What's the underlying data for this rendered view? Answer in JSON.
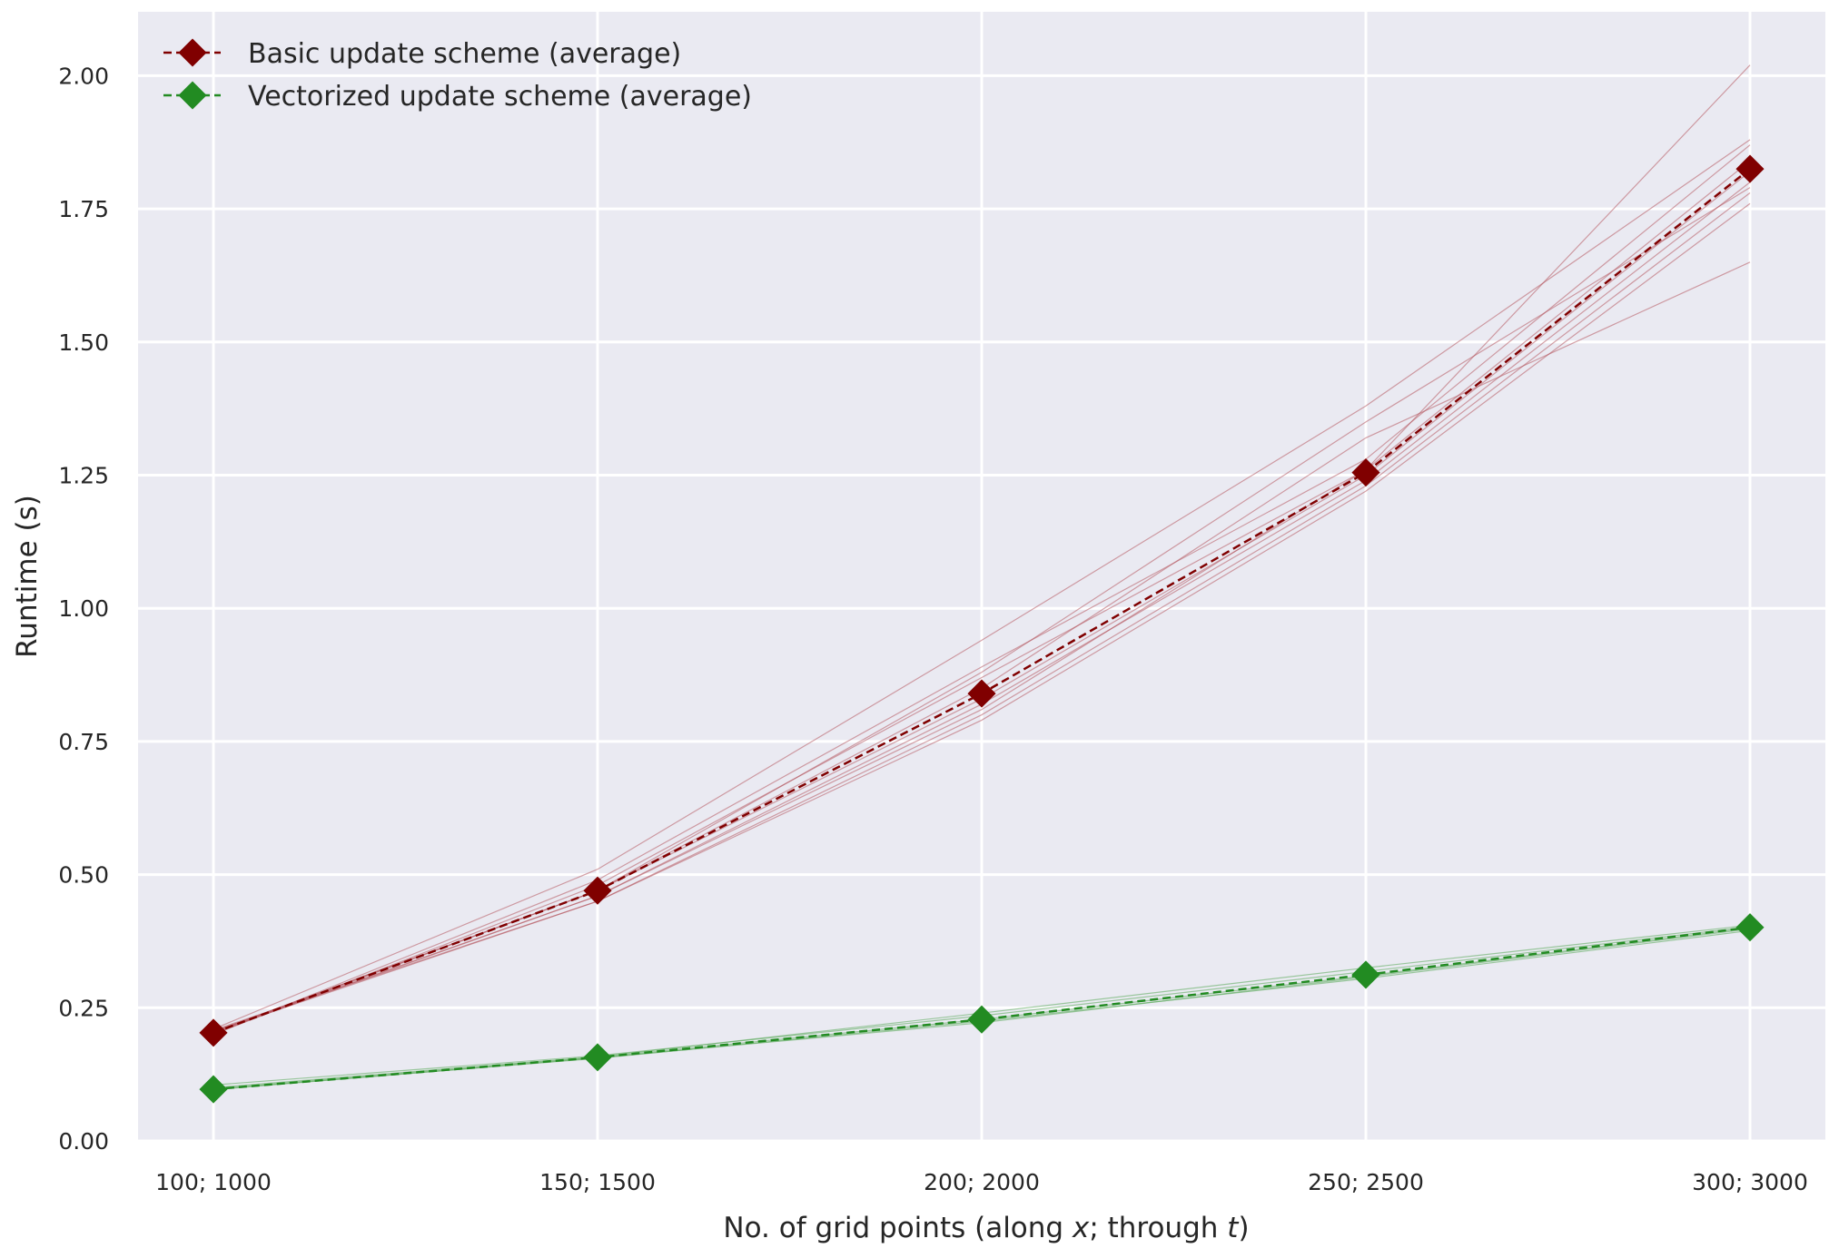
{
  "chart_data": {
    "type": "line",
    "xlabel": {
      "prefix": "No. of grid points (along ",
      "var1": "x",
      "mid": "; through ",
      "var2": "t",
      "suffix": ")"
    },
    "ylabel": "Runtime (s)",
    "categories": [
      "100; 1000",
      "150; 1500",
      "200; 2000",
      "250; 2500",
      "300; 3000"
    ],
    "ylim": [
      0,
      2.12
    ],
    "yticks": [
      "0.00",
      "0.25",
      "0.50",
      "0.75",
      "1.00",
      "1.25",
      "1.50",
      "1.75",
      "2.00"
    ],
    "grid": true,
    "legend_position": "top-left",
    "series": [
      {
        "name": "Basic update scheme (average)",
        "color": "#800000",
        "values": [
          0.203,
          0.47,
          0.84,
          1.255,
          1.825
        ]
      },
      {
        "name": "Vectorized update scheme (average)",
        "color": "#228B22",
        "values": [
          0.097,
          0.157,
          0.228,
          0.312,
          0.401
        ]
      }
    ],
    "runs": [
      {
        "color": "#b5555e",
        "lines": [
          [
            0.205,
            0.45,
            0.8,
            1.23,
            1.78
          ],
          [
            0.205,
            0.46,
            0.82,
            1.24,
            1.8
          ],
          [
            0.203,
            0.47,
            0.83,
            1.25,
            1.82
          ],
          [
            0.2,
            0.48,
            0.87,
            1.26,
            1.84
          ],
          [
            0.21,
            0.51,
            0.94,
            1.38,
            1.88
          ],
          [
            0.205,
            0.47,
            0.85,
            1.32,
            1.65
          ],
          [
            0.203,
            0.46,
            0.81,
            1.26,
            2.02
          ],
          [
            0.2,
            0.49,
            0.89,
            1.28,
            1.87
          ],
          [
            0.208,
            0.45,
            0.79,
            1.22,
            1.76
          ],
          [
            0.205,
            0.47,
            0.88,
            1.35,
            1.79
          ]
        ]
      },
      {
        "color": "#55a855",
        "lines": [
          [
            0.097,
            0.155,
            0.225,
            0.305,
            0.395
          ],
          [
            0.098,
            0.157,
            0.228,
            0.31,
            0.4
          ],
          [
            0.1,
            0.158,
            0.24,
            0.325,
            0.405
          ],
          [
            0.096,
            0.156,
            0.222,
            0.308,
            0.398
          ],
          [
            0.105,
            0.16,
            0.235,
            0.318,
            0.402
          ]
        ]
      }
    ]
  }
}
